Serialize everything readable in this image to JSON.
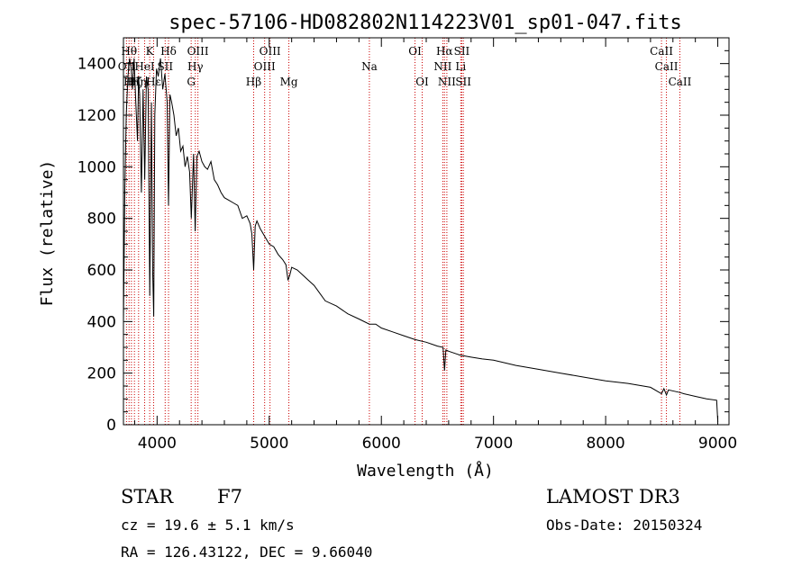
{
  "chart_data": {
    "type": "line",
    "title": "spec-57106-HD082802N114223V01_sp01-047.fits",
    "xlabel": "Wavelength (Å)",
    "ylabel": "Flux (relative)",
    "xlim": [
      3700,
      9100
    ],
    "ylim": [
      0,
      1500
    ],
    "xticks": [
      4000,
      5000,
      6000,
      7000,
      8000,
      9000
    ],
    "yticks": [
      0,
      200,
      400,
      600,
      800,
      1000,
      1200,
      1400
    ],
    "series": [
      {
        "name": "spectrum",
        "x": [
          3700,
          3712,
          3725,
          3740,
          3755,
          3770,
          3780,
          3795,
          3810,
          3825,
          3835,
          3845,
          3860,
          3875,
          3890,
          3905,
          3920,
          3935,
          3950,
          3960,
          3970,
          3980,
          3995,
          4010,
          4030,
          4050,
          4070,
          4090,
          4102,
          4115,
          4130,
          4150,
          4170,
          4190,
          4210,
          4230,
          4250,
          4270,
          4290,
          4305,
          4325,
          4340,
          4355,
          4375,
          4400,
          4425,
          4450,
          4480,
          4510,
          4540,
          4570,
          4600,
          4640,
          4680,
          4720,
          4760,
          4800,
          4830,
          4845,
          4861,
          4875,
          4890,
          4920,
          4960,
          5000,
          5040,
          5080,
          5120,
          5150,
          5167,
          5183,
          5200,
          5250,
          5300,
          5350,
          5400,
          5450,
          5500,
          5600,
          5700,
          5800,
          5893,
          5950,
          6000,
          6100,
          6200,
          6300,
          6400,
          6500,
          6550,
          6563,
          6575,
          6600,
          6700,
          6800,
          6900,
          7000,
          7200,
          7400,
          7600,
          7800,
          8000,
          8200,
          8400,
          8498,
          8520,
          8542,
          8560,
          8662,
          8700,
          8800,
          8900,
          8990,
          9000
        ],
        "values": [
          400,
          900,
          1200,
          1350,
          1420,
          1380,
          1300,
          1420,
          1250,
          1100,
          1350,
          1280,
          900,
          1300,
          950,
          1350,
          1300,
          500,
          1250,
          600,
          420,
          1200,
          1380,
          1350,
          1420,
          1300,
          1360,
          1250,
          850,
          1280,
          1250,
          1200,
          1120,
          1150,
          1060,
          1080,
          1000,
          1040,
          980,
          800,
          1050,
          750,
          1040,
          1060,
          1020,
          1000,
          990,
          1020,
          950,
          930,
          900,
          880,
          870,
          860,
          850,
          800,
          810,
          780,
          740,
          600,
          770,
          790,
          760,
          730,
          700,
          690,
          660,
          640,
          620,
          560,
          580,
          610,
          600,
          580,
          560,
          540,
          510,
          480,
          460,
          430,
          410,
          390,
          390,
          375,
          360,
          345,
          330,
          320,
          305,
          300,
          210,
          290,
          285,
          270,
          262,
          255,
          250,
          230,
          215,
          200,
          185,
          170,
          160,
          145,
          120,
          140,
          115,
          135,
          125,
          120,
          110,
          100,
          95,
          10
        ]
      }
    ],
    "emission_lines": [
      {
        "wave": 3727,
        "label": "OII",
        "row": 2
      },
      {
        "wave": 3750,
        "label": "Hθ",
        "row": 1
      },
      {
        "wave": 3771,
        "label": "Hη",
        "row": 3
      },
      {
        "wave": 3798,
        "label": "Hζ",
        "row": 3
      },
      {
        "wave": 3835,
        "label": "Hη",
        "row": 3
      },
      {
        "wave": 3889,
        "label": "HeI",
        "row": 2
      },
      {
        "wave": 3934,
        "label": "K",
        "row": 1
      },
      {
        "wave": 3969,
        "label": "Hε",
        "row": 3
      },
      {
        "wave": 4072,
        "label": "SII",
        "row": 2
      },
      {
        "wave": 4102,
        "label": "Hδ",
        "row": 1
      },
      {
        "wave": 4304,
        "label": "G",
        "row": 3
      },
      {
        "wave": 4341,
        "label": "Hγ",
        "row": 2
      },
      {
        "wave": 4364,
        "label": "OIII",
        "row": 1
      },
      {
        "wave": 4861,
        "label": "Hβ",
        "row": 3
      },
      {
        "wave": 4959,
        "label": "OIII",
        "row": 2
      },
      {
        "wave": 5007,
        "label": "OIII",
        "row": 1
      },
      {
        "wave": 5175,
        "label": "Mg",
        "row": 3
      },
      {
        "wave": 5893,
        "label": "Na",
        "row": 2
      },
      {
        "wave": 6300,
        "label": "OI",
        "row": 1
      },
      {
        "wave": 6364,
        "label": "OI",
        "row": 3
      },
      {
        "wave": 6548,
        "label": "NII",
        "row": 2
      },
      {
        "wave": 6563,
        "label": "Hα",
        "row": 1
      },
      {
        "wave": 6584,
        "label": "NII",
        "row": 3
      },
      {
        "wave": 6708,
        "label": "Li",
        "row": 2
      },
      {
        "wave": 6717,
        "label": "SII",
        "row": 1
      },
      {
        "wave": 6731,
        "label": "SII",
        "row": 3
      },
      {
        "wave": 8498,
        "label": "CaII",
        "row": 1
      },
      {
        "wave": 8542,
        "label": "CaII",
        "row": 2
      },
      {
        "wave": 8662,
        "label": "CaII",
        "row": 3
      }
    ]
  },
  "info": {
    "object_class": "STAR",
    "subclass": "F7",
    "survey": "LAMOST DR3",
    "cz": "cz = 19.6 ± 5.1 km/s",
    "obs_date": "Obs-Date: 20150324",
    "coords": "RA = 126.43122, DEC =    9.66040"
  },
  "colors": {
    "spectrum": "#000000",
    "line_markers": "#cc0000",
    "axes": "#000000"
  }
}
